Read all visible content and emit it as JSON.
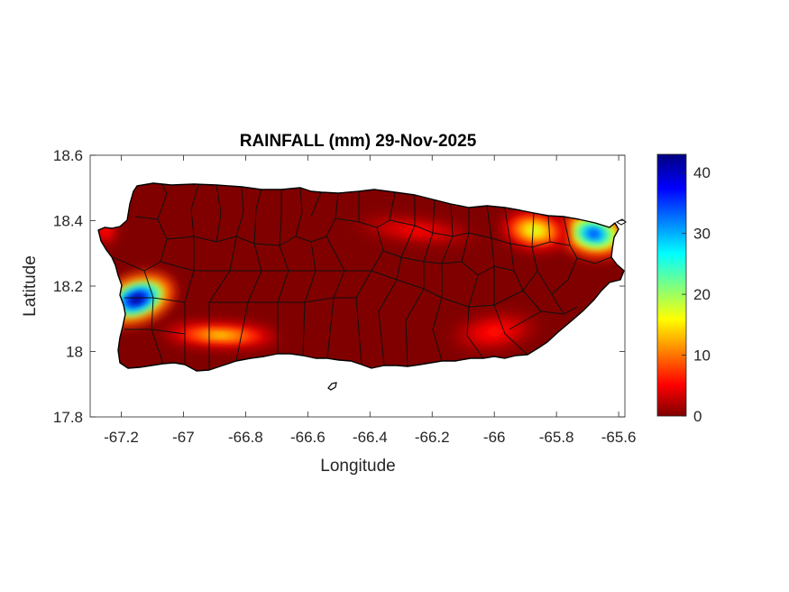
{
  "chart_data": {
    "type": "heatmap",
    "title": "RAINFALL (mm) 29-Nov-2025",
    "xlabel": "Longitude",
    "ylabel": "Latitude",
    "xlim": [
      -67.3,
      -65.58
    ],
    "ylim": [
      17.8,
      18.6
    ],
    "xticks": [
      -67.2,
      -67,
      -66.8,
      -66.6,
      -66.4,
      -66.2,
      -66,
      -65.8,
      -65.6
    ],
    "xtick_labels": [
      "-67.2",
      "-67",
      "-66.8",
      "-66.6",
      "-66.4",
      "-66.2",
      "-66",
      "-65.8",
      "-65.6"
    ],
    "yticks": [
      17.8,
      18,
      18.2,
      18.4,
      18.6
    ],
    "ytick_labels": [
      "17.8",
      "18",
      "18.2",
      "18.4",
      "18.6"
    ],
    "colorbar": {
      "colormap": "jet",
      "range": [
        0,
        43
      ],
      "ticks": [
        0,
        10,
        20,
        30,
        40
      ],
      "tick_labels": [
        "0",
        "10",
        "20",
        "30",
        "40"
      ],
      "colors": [
        "#800000",
        "#ff0000",
        "#ffff00",
        "#00ffff",
        "#0000ff",
        "#000080"
      ]
    },
    "rain_cells": [
      {
        "lon": -67.15,
        "lat": 18.16,
        "peak_mm": 43
      },
      {
        "lon": -65.68,
        "lat": 18.36,
        "peak_mm": 35
      },
      {
        "lon": -65.87,
        "lat": 18.37,
        "peak_mm": 18
      },
      {
        "lon": -66.88,
        "lat": 18.05,
        "peak_mm": 14
      },
      {
        "lon": -67.25,
        "lat": 18.37,
        "peak_mm": 6
      },
      {
        "lon": -66.0,
        "lat": 18.06,
        "peak_mm": 6
      },
      {
        "lon": -66.25,
        "lat": 18.37,
        "peak_mm": 5
      }
    ],
    "grid": false
  }
}
